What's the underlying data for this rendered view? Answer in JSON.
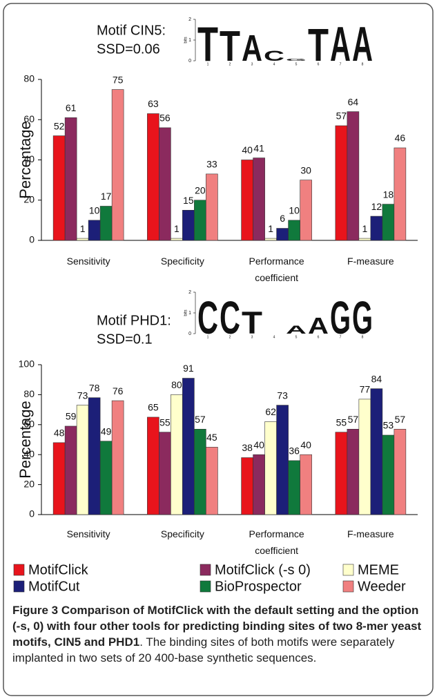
{
  "chart_data": [
    {
      "type": "bar",
      "title": "Motif CIN5:",
      "subtitle": "SSD=0.06",
      "y_label": "Percentage",
      "logo": {
        "letters": [
          "T",
          "T",
          "A",
          "C",
          "G",
          "T",
          "A",
          "A"
        ],
        "heights": [
          1.7,
          1.5,
          1.3,
          0.5,
          0.1,
          1.6,
          1.7,
          1.7
        ],
        "yticks": [
          0,
          1,
          2
        ],
        "y_label": "bits",
        "xticks": [
          1,
          2,
          3,
          4,
          5,
          6,
          7,
          8
        ]
      },
      "categories": [
        "Sensitivity",
        "Specificity",
        "Performance coefficient",
        "F-measure"
      ],
      "series": [
        {
          "color": "#e8141c",
          "values": [
            52,
            63,
            40,
            57
          ]
        },
        {
          "color": "#8b2a5e",
          "values": [
            61,
            56,
            41,
            64
          ]
        },
        {
          "color": "#ffffcc",
          "values": [
            1,
            1,
            1,
            1
          ]
        },
        {
          "color": "#1c1f78",
          "values": [
            10,
            15,
            6,
            12
          ]
        },
        {
          "color": "#10793c",
          "values": [
            17,
            20,
            10,
            18
          ]
        },
        {
          "color": "#f08080",
          "values": [
            75,
            33,
            30,
            46
          ]
        }
      ],
      "ylim": [
        0,
        80
      ],
      "yticks": [
        0,
        20,
        40,
        60,
        80
      ]
    },
    {
      "type": "bar",
      "title": "Motif PHD1:",
      "subtitle": "SSD=0.1",
      "y_label": "Percentage",
      "logo": {
        "letters": [
          "C",
          "C",
          "T",
          null,
          "A",
          "A",
          "G",
          "G"
        ],
        "heights": [
          1.6,
          1.6,
          1.1,
          0,
          0.4,
          0.8,
          1.6,
          1.6
        ],
        "yticks": [
          0,
          1,
          2
        ],
        "y_label": "bits",
        "xticks": [
          1,
          2,
          3,
          4,
          5,
          6,
          7,
          8
        ]
      },
      "categories": [
        "Sensitivity",
        "Specificity",
        "Performance coefficient",
        "F-measure"
      ],
      "series": [
        {
          "name": "MotifClick",
          "color": "#e8141c",
          "values": [
            48,
            65,
            38,
            55
          ]
        },
        {
          "name": "MotifClick (-s 0)",
          "color": "#8b2a5e",
          "values": [
            59,
            55,
            40,
            57
          ]
        },
        {
          "name": "MEME",
          "color": "#ffffcc",
          "values": [
            73,
            80,
            62,
            77
          ]
        },
        {
          "name": "MotifCut",
          "color": "#1c1f78",
          "values": [
            78,
            91,
            73,
            84
          ]
        },
        {
          "name": "BioProspector",
          "color": "#10793c",
          "values": [
            49,
            57,
            36,
            53
          ]
        },
        {
          "name": "Weeder",
          "color": "#f08080",
          "values": [
            76,
            45,
            40,
            57
          ]
        }
      ],
      "ylim": [
        0,
        100
      ],
      "yticks": [
        0,
        20,
        40,
        60,
        80,
        100
      ]
    }
  ],
  "caption": {
    "label": "Figure 3",
    "title": "Comparison of MotifClick with the default setting and the option (-s, 0) with four other tools for predicting binding sites of two 8-mer yeast motifs, CIN5 and PHD1",
    "text": ". The binding sites of both motifs were separately implanted in two sets of 20 400-base synthetic sequences."
  }
}
